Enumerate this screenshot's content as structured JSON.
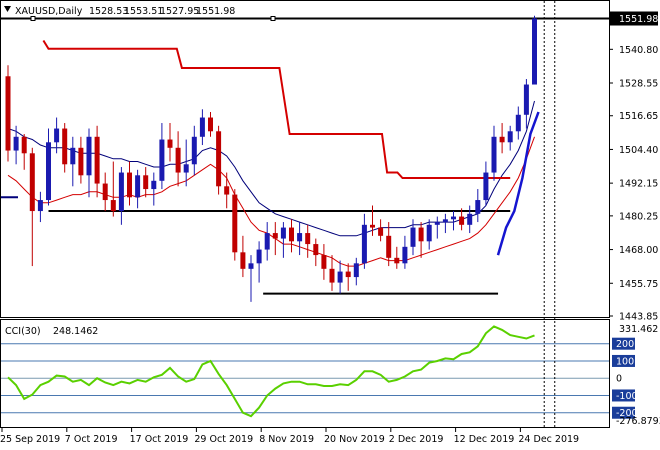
{
  "chart_data": [
    {
      "type": "candlestick",
      "symbol": "XAUUSD,Daily",
      "ohlc_readout": [
        "1528.53",
        "1553.51",
        "1527.95",
        "1551.98"
      ],
      "last_price_label": "1551.98",
      "ylim": [
        1443.85,
        1558
      ],
      "y_ticks": [
        "1540.80",
        "1528.55",
        "1516.65",
        "1504.40",
        "1492.15",
        "1480.25",
        "1468.00",
        "1455.75",
        "1443.85"
      ],
      "x_tick_labels": [
        "25 Sep 2019",
        "7 Oct 2019",
        "17 Oct 2019",
        "29 Oct 2019",
        "8 Nov 2019",
        "20 Nov 2019",
        "2 Dec 2019",
        "12 Dec 2019",
        "24 Dec 2019"
      ],
      "x_tick_index": [
        0,
        8,
        16,
        24,
        32,
        40,
        48,
        56,
        64
      ],
      "candles": [
        [
          1531,
          1535,
          1500,
          1504
        ],
        [
          1504,
          1513,
          1499,
          1509
        ],
        [
          1509,
          1510,
          1497,
          1503
        ],
        [
          1503,
          1505,
          1462,
          1482
        ],
        [
          1482,
          1489,
          1478,
          1486
        ],
        [
          1486,
          1512,
          1484,
          1507
        ],
        [
          1507,
          1516,
          1503,
          1512
        ],
        [
          1512,
          1514,
          1496,
          1499
        ],
        [
          1499,
          1509,
          1491,
          1505
        ],
        [
          1505,
          1509,
          1492,
          1495
        ],
        [
          1495,
          1512,
          1487,
          1509
        ],
        [
          1509,
          1513,
          1487,
          1492
        ],
        [
          1492,
          1496,
          1482,
          1486
        ],
        [
          1486,
          1500,
          1480,
          1482
        ],
        [
          1482,
          1498,
          1477,
          1496
        ],
        [
          1496,
          1500,
          1484,
          1487
        ],
        [
          1487,
          1497,
          1483,
          1495
        ],
        [
          1495,
          1498,
          1487,
          1490
        ],
        [
          1490,
          1496,
          1484,
          1493
        ],
        [
          1493,
          1514,
          1490,
          1508
        ],
        [
          1508,
          1514,
          1500,
          1505
        ],
        [
          1505,
          1511,
          1491,
          1496
        ],
        [
          1496,
          1508,
          1491,
          1499
        ],
        [
          1499,
          1513,
          1495,
          1509
        ],
        [
          1509,
          1519,
          1506,
          1516
        ],
        [
          1516,
          1518,
          1509,
          1511
        ],
        [
          1511,
          1513,
          1488,
          1491
        ],
        [
          1491,
          1496,
          1483,
          1488
        ],
        [
          1488,
          1490,
          1464,
          1467
        ],
        [
          1467,
          1473,
          1458,
          1461
        ],
        [
          1461,
          1466,
          1449,
          1463
        ],
        [
          1463,
          1471,
          1456,
          1468
        ],
        [
          1468,
          1478,
          1464,
          1474
        ],
        [
          1474,
          1478,
          1466,
          1472
        ],
        [
          1472,
          1478,
          1465,
          1476
        ],
        [
          1476,
          1479,
          1467,
          1471
        ],
        [
          1471,
          1478,
          1466,
          1474
        ],
        [
          1474,
          1477,
          1465,
          1470
        ],
        [
          1470,
          1472,
          1462,
          1466
        ],
        [
          1466,
          1470,
          1457,
          1461
        ],
        [
          1461,
          1466,
          1453,
          1456
        ],
        [
          1456,
          1464,
          1452,
          1460
        ],
        [
          1460,
          1463,
          1453,
          1458
        ],
        [
          1458,
          1465,
          1455,
          1463
        ],
        [
          1463,
          1481,
          1461,
          1477
        ],
        [
          1477,
          1484,
          1473,
          1476
        ],
        [
          1476,
          1479,
          1471,
          1473
        ],
        [
          1473,
          1478,
          1462,
          1465
        ],
        [
          1465,
          1469,
          1461,
          1463
        ],
        [
          1463,
          1473,
          1461,
          1469
        ],
        [
          1469,
          1479,
          1466,
          1476
        ],
        [
          1476,
          1478,
          1465,
          1471
        ],
        [
          1471,
          1479,
          1468,
          1477
        ],
        [
          1477,
          1480,
          1472,
          1478
        ],
        [
          1478,
          1481,
          1474,
          1479
        ],
        [
          1479,
          1482,
          1475,
          1480
        ],
        [
          1480,
          1483,
          1475,
          1477
        ],
        [
          1477,
          1484,
          1474,
          1481
        ],
        [
          1481,
          1490,
          1478,
          1486
        ],
        [
          1486,
          1500,
          1484,
          1496
        ],
        [
          1496,
          1513,
          1493,
          1509
        ],
        [
          1509,
          1514,
          1503,
          1507
        ],
        [
          1507,
          1513,
          1504,
          1511
        ],
        [
          1511,
          1520,
          1508,
          1517
        ],
        [
          1517,
          1530,
          1512,
          1528
        ],
        [
          1528,
          1553,
          1528,
          1552
        ]
      ],
      "bollinger_upper": [
        1512,
        1511,
        1509,
        1508,
        1506,
        1505,
        1505,
        1505,
        1504,
        1503,
        1503,
        1503,
        1502,
        1501,
        1501,
        1500,
        1500,
        1499,
        1498,
        1498,
        1499,
        1499,
        1500,
        1501,
        1504,
        1505,
        1504,
        1502,
        1498,
        1493,
        1489,
        1485,
        1483,
        1481,
        1480,
        1479,
        1478,
        1477,
        1476,
        1475,
        1474,
        1473,
        1473,
        1473,
        1474,
        1475,
        1476,
        1476,
        1476,
        1476,
        1477,
        1477,
        1478,
        1478,
        1478,
        1478,
        1479,
        1480,
        1481,
        1484,
        1490,
        1495,
        1499,
        1504,
        1511,
        1522
      ],
      "lower_band_line": [
        1495,
        1493,
        1490,
        1487,
        1485,
        1485,
        1486,
        1487,
        1488,
        1488,
        1489,
        1489,
        1488,
        1487,
        1487,
        1488,
        1487,
        1488,
        1488,
        1489,
        1491,
        1492,
        1493,
        1495,
        1497,
        1499,
        1497,
        1494,
        1488,
        1483,
        1478,
        1475,
        1474,
        1472,
        1470,
        1470,
        1469,
        1468,
        1467,
        1466,
        1465,
        1463,
        1462,
        1462,
        1463,
        1464,
        1465,
        1464,
        1464,
        1464,
        1465,
        1466,
        1467,
        1468,
        1469,
        1470,
        1471,
        1472,
        1474,
        1477,
        1481,
        1485,
        1489,
        1494,
        1501,
        1509
      ],
      "resistance_line": [
        null,
        null,
        null,
        1544,
        1541,
        1541,
        1541,
        1541,
        1541,
        1541,
        1541,
        1541,
        1541,
        1541,
        1541,
        1541,
        1541,
        1541,
        1541,
        1541,
        1541,
        1541,
        1541,
        1541,
        1541,
        1541,
        1541,
        1541,
        1541,
        1541,
        1534,
        1534,
        1534,
        1534,
        1534,
        1534,
        1534,
        1534,
        1534,
        1534,
        1534,
        1534,
        1534,
        1534,
        1534,
        1534,
        1534,
        1534,
        1534,
        1534,
        1522,
        1510,
        1510,
        1510,
        1510,
        1510,
        1510,
        1510,
        1510,
        1510,
        1510,
        1510,
        1510,
        1510,
        1510,
        1510,
        1510,
        1510,
        1510,
        1510,
        1496,
        1496,
        1496,
        1494,
        1494,
        1494,
        1494,
        1494,
        1494,
        1494,
        1494,
        1494,
        1494,
        1494,
        1494,
        1494,
        1494,
        1494,
        1494,
        1494,
        1494,
        1494,
        1494,
        1494,
        1494
      ],
      "support_line_upper": 1482,
      "support_line_lower": 1452,
      "trend_line_blue": [
        [
          62,
          1466
        ],
        [
          63,
          1476
        ],
        [
          64,
          1482
        ],
        [
          65,
          1494
        ],
        [
          66,
          1510
        ],
        [
          67,
          1518
        ]
      ],
      "cci": {
        "label": "CCI(30)",
        "value_label": "248.1462",
        "max_label": "331.462",
        "min_label": "-276.8793",
        "levels": [
          "200",
          "100",
          "0",
          "-100",
          "-200"
        ],
        "ylim": [
          -276.8793,
          331.462
        ],
        "values": [
          5,
          -40,
          -120,
          -95,
          -40,
          -20,
          15,
          10,
          -20,
          -10,
          -40,
          0,
          -25,
          -40,
          -20,
          -30,
          -10,
          -20,
          5,
          20,
          60,
          10,
          -20,
          -5,
          80,
          100,
          25,
          -40,
          -120,
          -200,
          -220,
          -170,
          -100,
          -60,
          -30,
          -20,
          -20,
          -35,
          -35,
          -45,
          -45,
          -35,
          -40,
          -10,
          40,
          40,
          20,
          -20,
          -10,
          10,
          40,
          50,
          90,
          100,
          115,
          110,
          140,
          150,
          185,
          260,
          300,
          280,
          250,
          240,
          230,
          248
        ]
      }
    }
  ]
}
